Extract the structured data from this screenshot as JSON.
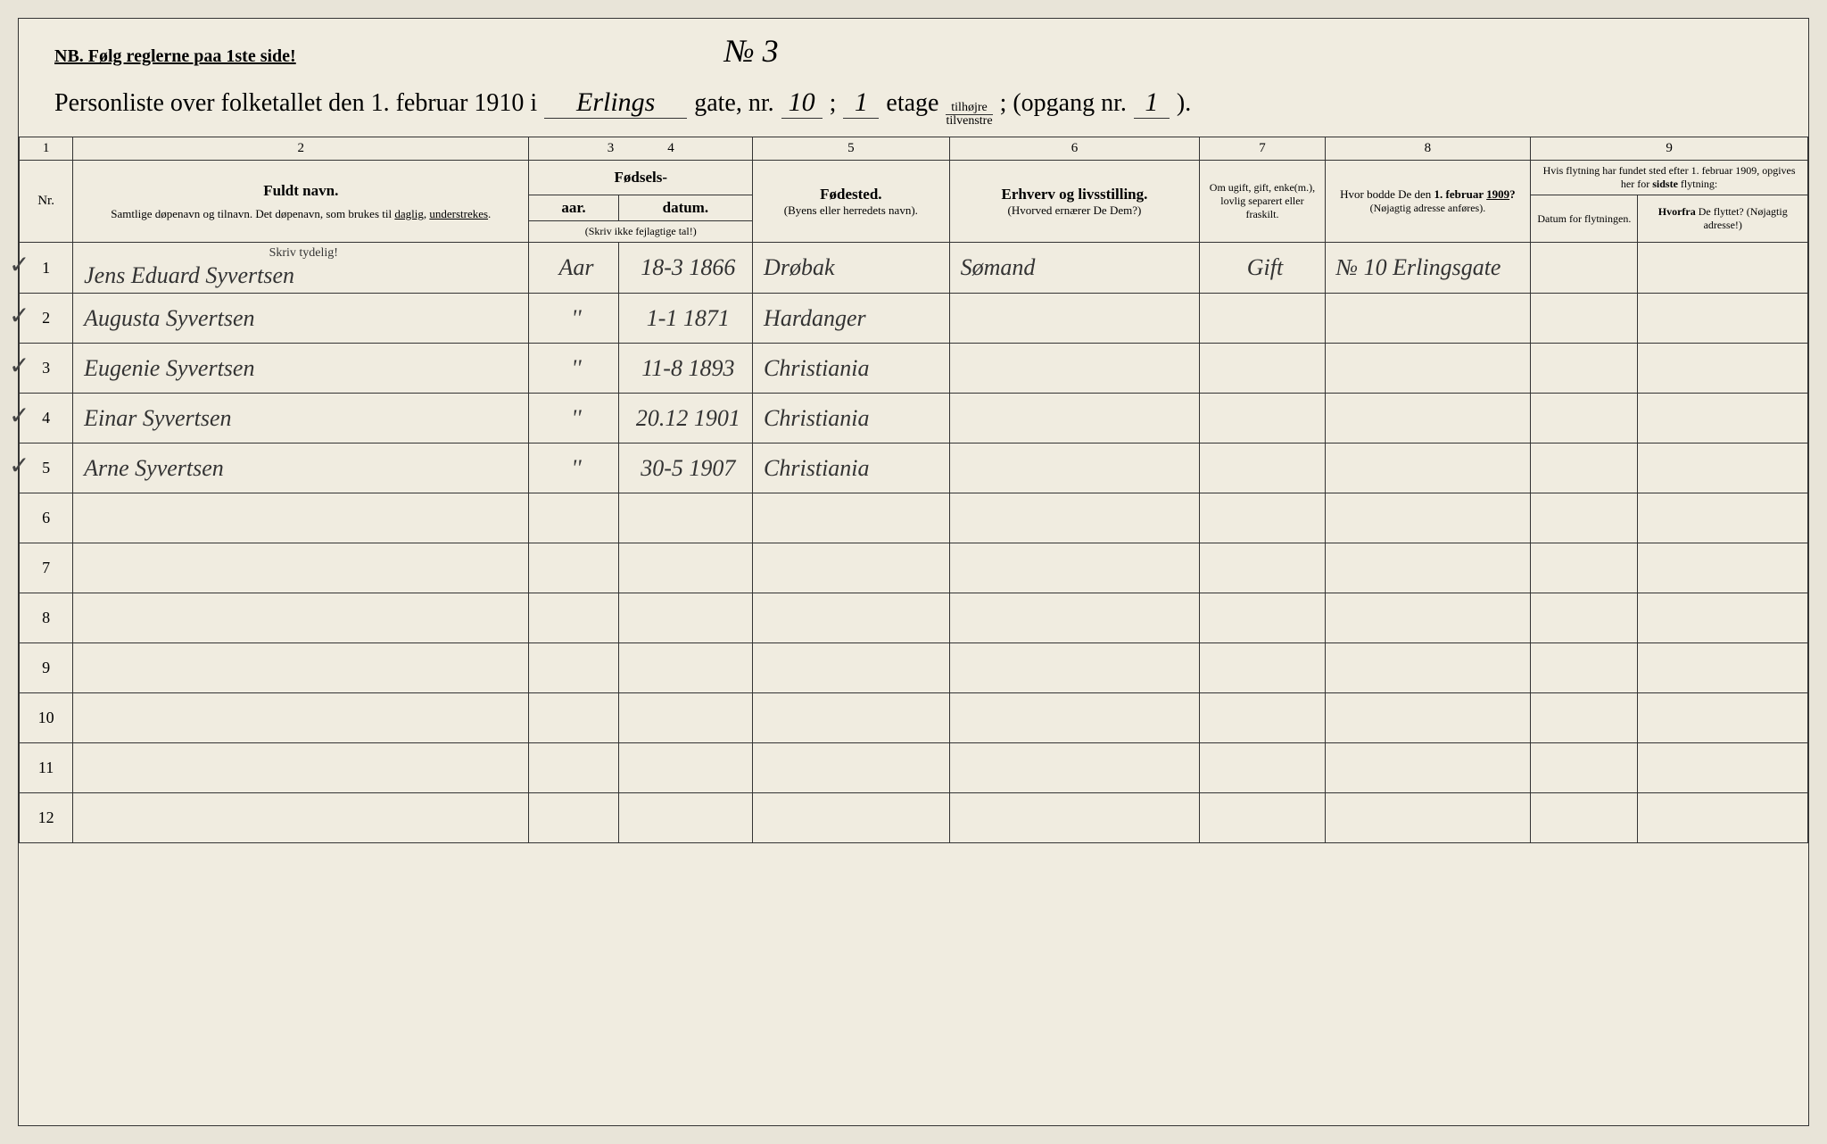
{
  "header": {
    "nb": "NB.  Følg reglerne paa 1ste side!",
    "page_number": "№ 3",
    "title_prefix": "Personliste over folketallet den 1. februar 1910 i",
    "street_name": "Erlings",
    "gate_label": "gate, nr.",
    "gate_nr": "10",
    "semicolon": ";",
    "etage_nr": "1",
    "etage_label": "etage",
    "fraction_top": "tilhøjre",
    "fraction_bottom": "tilvenstre",
    "opgang_label": "; (opgang nr.",
    "opgang_nr": "1",
    "closing": ")."
  },
  "columns": {
    "numbers": [
      "1",
      "2",
      "3",
      "4",
      "5",
      "6",
      "7",
      "8",
      "9"
    ],
    "nr": "Nr.",
    "name_main": "Fuldt navn.",
    "name_sub": "Samtlige døpenavn og tilnavn. Det døpenavn, som brukes til daglig, understrekes.",
    "birth_main": "Fødsels-",
    "birth_year": "aar.",
    "birth_date": "datum.",
    "birth_note": "(Skriv ikke fejlagtige tal!)",
    "birthplace_main": "Fødested.",
    "birthplace_sub": "(Byens eller herredets navn).",
    "occupation_main": "Erhverv og livsstilling.",
    "occupation_sub": "(Hvorved ernærer De Dem?)",
    "marital": "Om ugift, gift, enke(m.), lovlig separert eller fraskilt.",
    "residence_main": "Hvor bodde De den 1. februar 1909?",
    "residence_sub": "(Nøjagtig adresse anføres).",
    "move_main": "Hvis flytning har fundet sted efter 1. februar 1909, opgives her for sidste flytning:",
    "move_date": "Datum for flytningen.",
    "move_from": "Hvorfra De flyttet? (Nøjagtig adresse!)",
    "skriv_tydelig": "Skriv tydelig!"
  },
  "rows": [
    {
      "nr": "1",
      "check": true,
      "name": "Jens Eduard Syvertsen",
      "year": "Aar",
      "date": "18-3 1866",
      "birthplace": "Drøbak",
      "occupation": "Sømand",
      "marital": "Gift",
      "residence": "№ 10 Erlingsgate",
      "move_date": "",
      "move_from": ""
    },
    {
      "nr": "2",
      "check": true,
      "name": "Augusta Syvertsen",
      "year": "''",
      "date": "1-1 1871",
      "birthplace": "Hardanger",
      "occupation": "",
      "marital": "",
      "residence": "",
      "move_date": "",
      "move_from": ""
    },
    {
      "nr": "3",
      "check": true,
      "name": "Eugenie Syvertsen",
      "year": "''",
      "date": "11-8 1893",
      "birthplace": "Christiania",
      "occupation": "",
      "marital": "",
      "residence": "",
      "move_date": "",
      "move_from": ""
    },
    {
      "nr": "4",
      "check": true,
      "name": "Einar Syvertsen",
      "year": "''",
      "date": "20.12 1901",
      "birthplace": "Christiania",
      "occupation": "",
      "marital": "",
      "residence": "",
      "move_date": "",
      "move_from": ""
    },
    {
      "nr": "5",
      "check": true,
      "name": "Arne Syvertsen",
      "year": "''",
      "date": "30-5 1907",
      "birthplace": "Christiania",
      "occupation": "",
      "marital": "",
      "residence": "",
      "move_date": "",
      "move_from": ""
    },
    {
      "nr": "6",
      "check": false,
      "name": "",
      "year": "",
      "date": "",
      "birthplace": "",
      "occupation": "",
      "marital": "",
      "residence": "",
      "move_date": "",
      "move_from": ""
    },
    {
      "nr": "7",
      "check": false,
      "name": "",
      "year": "",
      "date": "",
      "birthplace": "",
      "occupation": "",
      "marital": "",
      "residence": "",
      "move_date": "",
      "move_from": ""
    },
    {
      "nr": "8",
      "check": false,
      "name": "",
      "year": "",
      "date": "",
      "birthplace": "",
      "occupation": "",
      "marital": "",
      "residence": "",
      "move_date": "",
      "move_from": ""
    },
    {
      "nr": "9",
      "check": false,
      "name": "",
      "year": "",
      "date": "",
      "birthplace": "",
      "occupation": "",
      "marital": "",
      "residence": "",
      "move_date": "",
      "move_from": ""
    },
    {
      "nr": "10",
      "check": false,
      "name": "",
      "year": "",
      "date": "",
      "birthplace": "",
      "occupation": "",
      "marital": "",
      "residence": "",
      "move_date": "",
      "move_from": ""
    },
    {
      "nr": "11",
      "check": false,
      "name": "",
      "year": "",
      "date": "",
      "birthplace": "",
      "occupation": "",
      "marital": "",
      "residence": "",
      "move_date": "",
      "move_from": ""
    },
    {
      "nr": "12",
      "check": false,
      "name": "",
      "year": "",
      "date": "",
      "birthplace": "",
      "occupation": "",
      "marital": "",
      "residence": "",
      "move_date": "",
      "move_from": ""
    }
  ],
  "styling": {
    "background_color": "#f0ece0",
    "border_color": "#333333",
    "text_color": "#222222",
    "handwriting_color": "#333333",
    "title_fontsize": 28,
    "header_fontsize": 17,
    "cell_fontsize": 15,
    "handwriting_fontsize": 26,
    "col_widths_pct": [
      3,
      25.5,
      5,
      7.5,
      11,
      14,
      7,
      11.5,
      6,
      9.5
    ]
  }
}
